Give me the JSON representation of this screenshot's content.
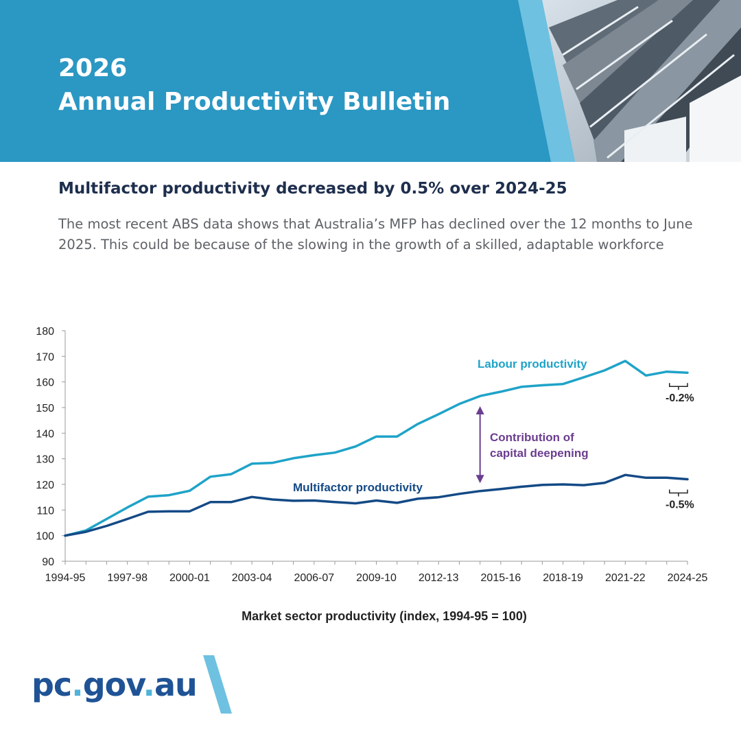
{
  "banner": {
    "year": "2026",
    "title": "Annual Productivity Bulletin",
    "colors": {
      "background": "#2b97c3",
      "accent": "#6ec1e0"
    }
  },
  "headline": "Multifactor productivity decreased by 0.5% over 2024-25",
  "subtext": "The most recent ABS data shows that Australia’s MFP has declined over the 12 months to June 2025. This could be because of the slowing in the growth of a skilled, adaptable workforce",
  "chart_data": {
    "type": "line",
    "title": "Market sector productivity (index, 1994-95 = 100)",
    "x_tick_labels": [
      "1994-95",
      "1997-98",
      "2000-01",
      "2003-04",
      "2006-07",
      "2009-10",
      "2012-13",
      "2015-16",
      "2018-19",
      "2021-22",
      "2024-25"
    ],
    "x": [
      "1994-95",
      "1995-96",
      "1996-97",
      "1997-98",
      "1998-99",
      "1999-00",
      "2000-01",
      "2001-02",
      "2002-03",
      "2003-04",
      "2004-05",
      "2005-06",
      "2006-07",
      "2007-08",
      "2008-09",
      "2009-10",
      "2010-11",
      "2011-12",
      "2012-13",
      "2013-14",
      "2014-15",
      "2015-16",
      "2016-17",
      "2017-18",
      "2018-19",
      "2019-20",
      "2020-21",
      "2021-22",
      "2022-23",
      "2023-24",
      "2024-25"
    ],
    "ylim": [
      90,
      180
    ],
    "yticks": [
      90,
      100,
      110,
      120,
      130,
      140,
      150,
      160,
      170,
      180
    ],
    "grid": false,
    "series": [
      {
        "name": "Labour productivity",
        "color": "#1fa3c8",
        "values": [
          100,
          102,
          106.5,
          111,
          115.2,
          115.8,
          117.5,
          123,
          124,
          128.1,
          128.4,
          130.2,
          131.4,
          132.4,
          134.8,
          138.7,
          138.7,
          143.6,
          147.4,
          151.4,
          154.5,
          156.2,
          158.1,
          158.7,
          159.2,
          161.8,
          164.5,
          168.2,
          162.5,
          164,
          163.6
        ],
        "change_label": "-0.2%"
      },
      {
        "name": "Multifactor productivity",
        "color": "#144a86",
        "values": [
          100,
          101.5,
          103.8,
          106.5,
          109.3,
          109.5,
          109.5,
          113.1,
          113.1,
          115.1,
          114.1,
          113.6,
          113.7,
          113.1,
          112.6,
          113.7,
          112.8,
          114.4,
          115,
          116.3,
          117.4,
          118.2,
          119.1,
          119.8,
          120,
          119.7,
          120.6,
          123.7,
          122.6,
          122.6,
          122
        ],
        "change_label": "-0.5%"
      }
    ],
    "annotation": {
      "text_line1": "Contribution of",
      "text_line2": "capital deepening",
      "color": "#6b3d8f",
      "at_x": "2014-15",
      "from": 121,
      "to": 150
    }
  },
  "footer": {
    "logo_part1": "pc",
    "logo_dot1": ".",
    "logo_part2": "gov",
    "logo_dot2": ".",
    "logo_part3": "au"
  }
}
